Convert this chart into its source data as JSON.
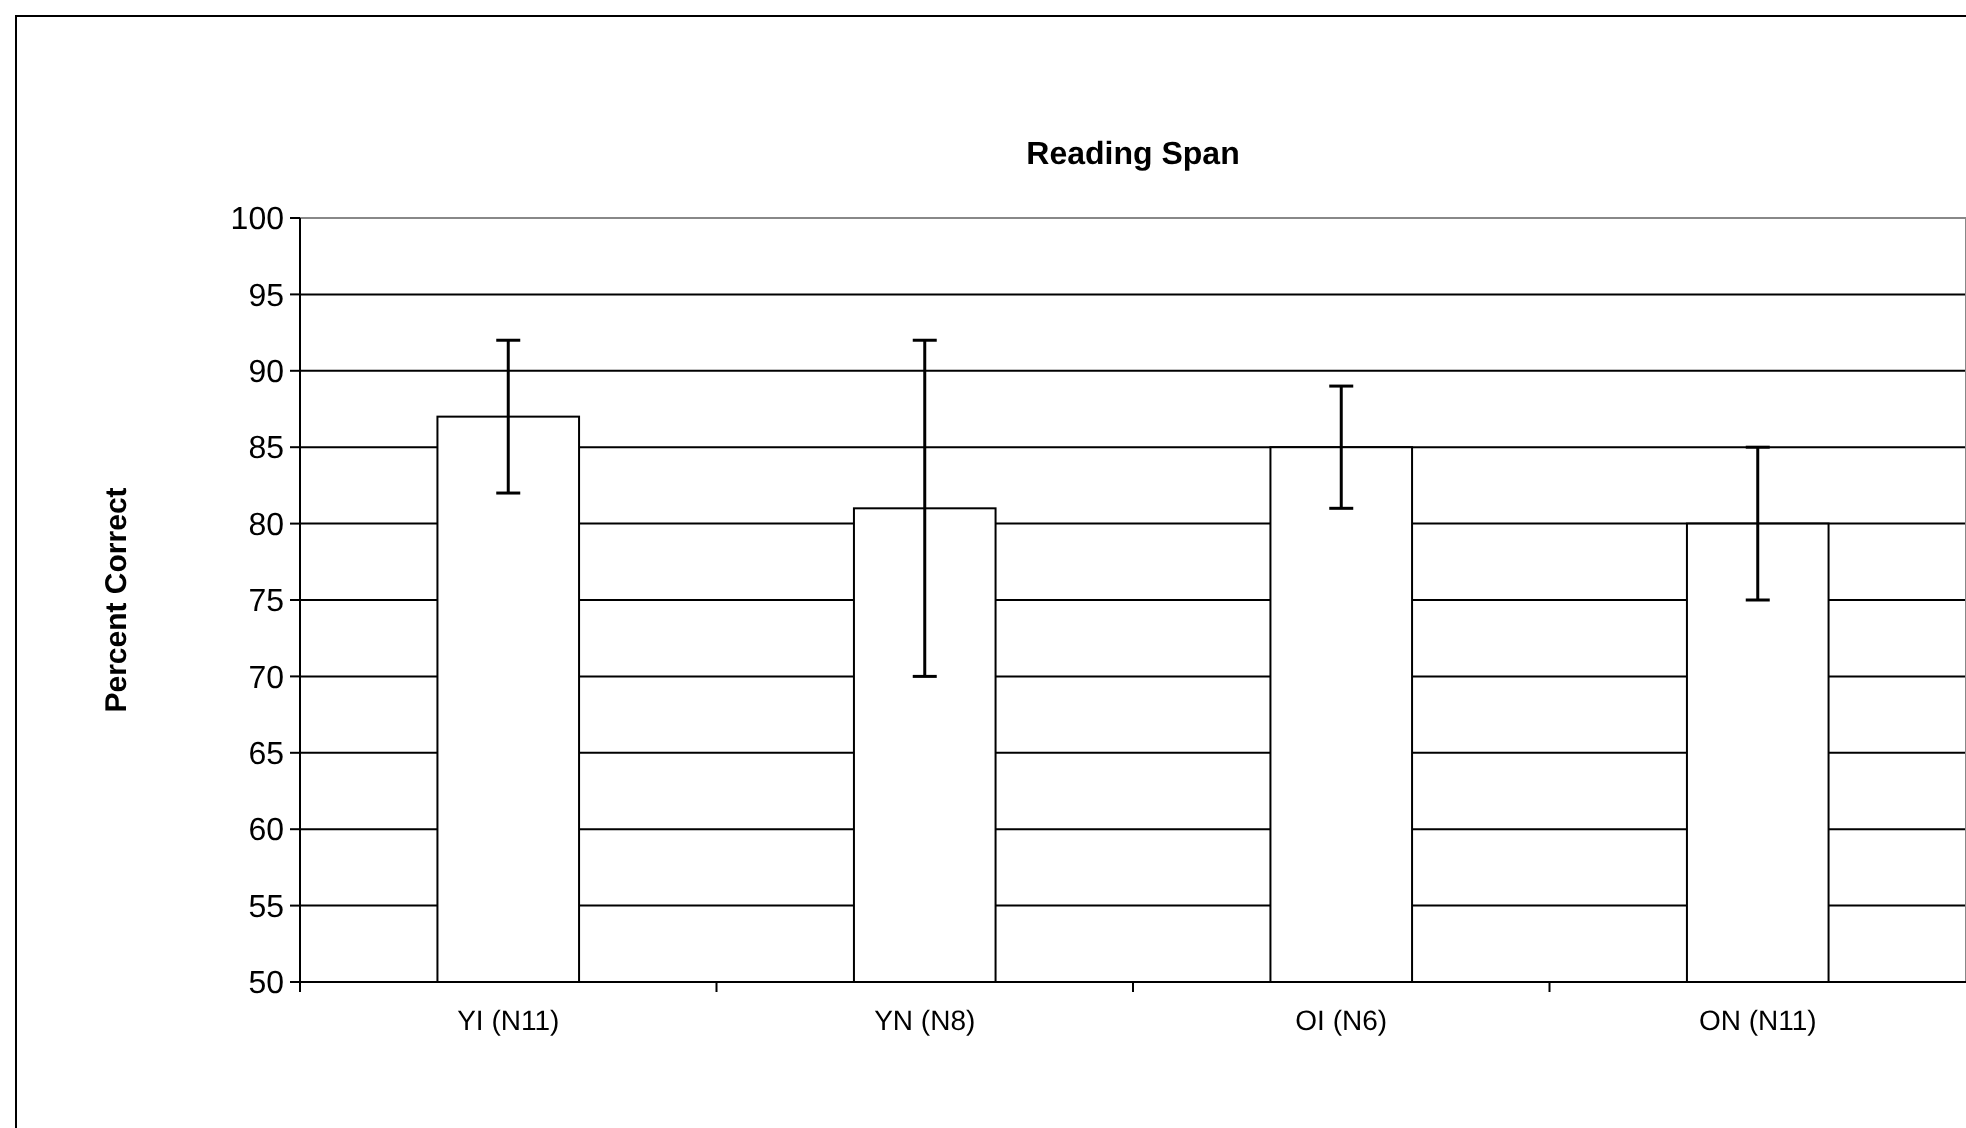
{
  "chart_data": {
    "type": "bar",
    "title": "Reading Span",
    "ylabel": "Percent Correct",
    "categories": [
      "YI (N11)",
      "YN (N8)",
      "OI (N6)",
      "ON (N11)"
    ],
    "values": [
      87,
      81,
      85,
      80
    ],
    "errors": [
      5,
      11,
      4,
      5
    ],
    "color": "#ffffff",
    "ylim": [
      50,
      100
    ],
    "yticks": [
      50,
      55,
      60,
      65,
      70,
      75,
      80,
      85,
      90,
      95,
      100
    ],
    "grid": "y"
  }
}
